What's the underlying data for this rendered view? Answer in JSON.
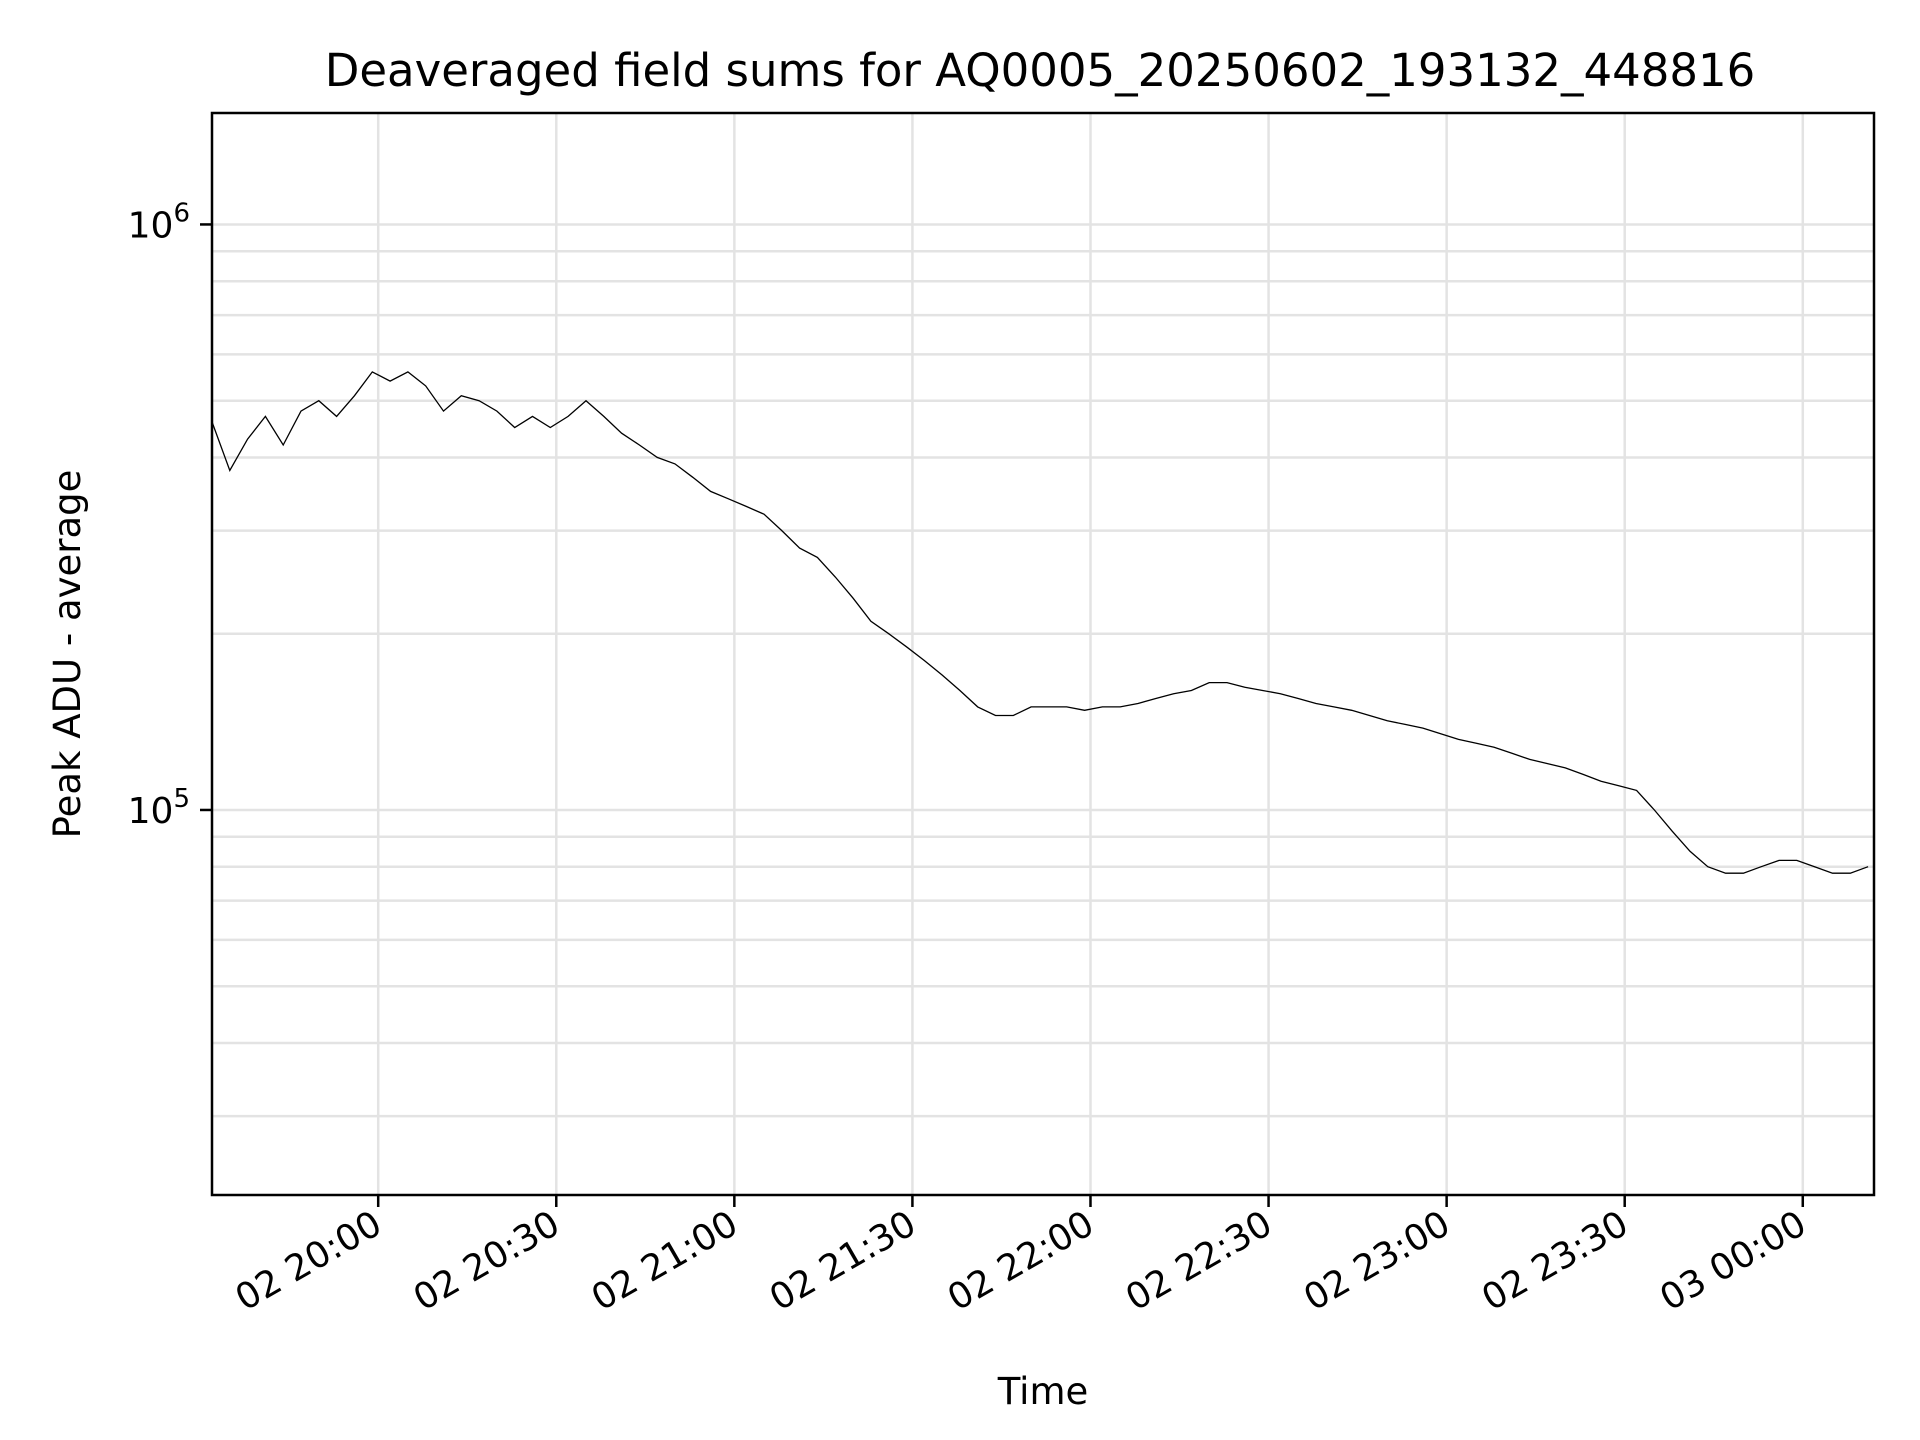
{
  "chart_data": {
    "type": "line",
    "title": "Deaveraged field sums for AQ0005_20250602_193132_448816",
    "xlabel": "Time",
    "ylabel": "Peak ADU - average",
    "yscale": "log",
    "ylim": [
      22000,
      1550000
    ],
    "xlim": [
      "2025-06-02 19:32:00",
      "2025-06-03 00:12:00"
    ],
    "grid": true,
    "xticks": [
      {
        "value": "2025-06-02 20:00:00",
        "label": "02 20:00"
      },
      {
        "value": "2025-06-02 20:30:00",
        "label": "02 20:30"
      },
      {
        "value": "2025-06-02 21:00:00",
        "label": "02 21:00"
      },
      {
        "value": "2025-06-02 21:30:00",
        "label": "02 21:30"
      },
      {
        "value": "2025-06-02 22:00:00",
        "label": "02 22:00"
      },
      {
        "value": "2025-06-02 22:30:00",
        "label": "02 22:30"
      },
      {
        "value": "2025-06-02 23:00:00",
        "label": "02 23:00"
      },
      {
        "value": "2025-06-02 23:30:00",
        "label": "02 23:30"
      },
      {
        "value": "2025-06-03 00:00:00",
        "label": "03 00:00"
      }
    ],
    "yticks": [
      {
        "value": 100000,
        "base": "10",
        "exp": "5"
      },
      {
        "value": 1000000,
        "base": "10",
        "exp": "6"
      }
    ],
    "series": [
      {
        "color": "#000000",
        "points": [
          [
            "2025-06-02 19:32:00",
            460000
          ],
          [
            "2025-06-02 19:35:00",
            380000
          ],
          [
            "2025-06-02 19:38:00",
            430000
          ],
          [
            "2025-06-02 19:41:00",
            470000
          ],
          [
            "2025-06-02 19:44:00",
            420000
          ],
          [
            "2025-06-02 19:47:00",
            480000
          ],
          [
            "2025-06-02 19:50:00",
            500000
          ],
          [
            "2025-06-02 19:53:00",
            470000
          ],
          [
            "2025-06-02 19:56:00",
            510000
          ],
          [
            "2025-06-02 19:59:00",
            560000
          ],
          [
            "2025-06-02 20:02:00",
            540000
          ],
          [
            "2025-06-02 20:05:00",
            560000
          ],
          [
            "2025-06-02 20:08:00",
            530000
          ],
          [
            "2025-06-02 20:11:00",
            480000
          ],
          [
            "2025-06-02 20:14:00",
            510000
          ],
          [
            "2025-06-02 20:17:00",
            500000
          ],
          [
            "2025-06-02 20:20:00",
            480000
          ],
          [
            "2025-06-02 20:23:00",
            450000
          ],
          [
            "2025-06-02 20:26:00",
            470000
          ],
          [
            "2025-06-02 20:29:00",
            450000
          ],
          [
            "2025-06-02 20:32:00",
            470000
          ],
          [
            "2025-06-02 20:35:00",
            500000
          ],
          [
            "2025-06-02 20:38:00",
            470000
          ],
          [
            "2025-06-02 20:41:00",
            440000
          ],
          [
            "2025-06-02 20:44:00",
            420000
          ],
          [
            "2025-06-02 20:47:00",
            400000
          ],
          [
            "2025-06-02 20:50:00",
            390000
          ],
          [
            "2025-06-02 20:53:00",
            370000
          ],
          [
            "2025-06-02 20:56:00",
            350000
          ],
          [
            "2025-06-02 20:59:00",
            340000
          ],
          [
            "2025-06-02 21:02:00",
            330000
          ],
          [
            "2025-06-02 21:05:00",
            320000
          ],
          [
            "2025-06-02 21:08:00",
            300000
          ],
          [
            "2025-06-02 21:11:00",
            280000
          ],
          [
            "2025-06-02 21:14:00",
            270000
          ],
          [
            "2025-06-02 21:17:00",
            250000
          ],
          [
            "2025-06-02 21:20:00",
            230000
          ],
          [
            "2025-06-02 21:23:00",
            210000
          ],
          [
            "2025-06-02 21:26:00",
            200000
          ],
          [
            "2025-06-02 21:29:00",
            190000
          ],
          [
            "2025-06-02 21:32:00",
            180000
          ],
          [
            "2025-06-02 21:35:00",
            170000
          ],
          [
            "2025-06-02 21:38:00",
            160000
          ],
          [
            "2025-06-02 21:41:00",
            150000
          ],
          [
            "2025-06-02 21:44:00",
            145000
          ],
          [
            "2025-06-02 21:47:00",
            145000
          ],
          [
            "2025-06-02 21:50:00",
            150000
          ],
          [
            "2025-06-02 21:53:00",
            150000
          ],
          [
            "2025-06-02 21:56:00",
            150000
          ],
          [
            "2025-06-02 21:59:00",
            148000
          ],
          [
            "2025-06-02 22:02:00",
            150000
          ],
          [
            "2025-06-02 22:05:00",
            150000
          ],
          [
            "2025-06-02 22:08:00",
            152000
          ],
          [
            "2025-06-02 22:11:00",
            155000
          ],
          [
            "2025-06-02 22:14:00",
            158000
          ],
          [
            "2025-06-02 22:17:00",
            160000
          ],
          [
            "2025-06-02 22:20:00",
            165000
          ],
          [
            "2025-06-02 22:23:00",
            165000
          ],
          [
            "2025-06-02 22:26:00",
            162000
          ],
          [
            "2025-06-02 22:29:00",
            160000
          ],
          [
            "2025-06-02 22:32:00",
            158000
          ],
          [
            "2025-06-02 22:35:00",
            155000
          ],
          [
            "2025-06-02 22:38:00",
            152000
          ],
          [
            "2025-06-02 22:41:00",
            150000
          ],
          [
            "2025-06-02 22:44:00",
            148000
          ],
          [
            "2025-06-02 22:47:00",
            145000
          ],
          [
            "2025-06-02 22:50:00",
            142000
          ],
          [
            "2025-06-02 22:53:00",
            140000
          ],
          [
            "2025-06-02 22:56:00",
            138000
          ],
          [
            "2025-06-02 22:59:00",
            135000
          ],
          [
            "2025-06-02 23:02:00",
            132000
          ],
          [
            "2025-06-02 23:05:00",
            130000
          ],
          [
            "2025-06-02 23:08:00",
            128000
          ],
          [
            "2025-06-02 23:11:00",
            125000
          ],
          [
            "2025-06-02 23:14:00",
            122000
          ],
          [
            "2025-06-02 23:17:00",
            120000
          ],
          [
            "2025-06-02 23:20:00",
            118000
          ],
          [
            "2025-06-02 23:23:00",
            115000
          ],
          [
            "2025-06-02 23:26:00",
            112000
          ],
          [
            "2025-06-02 23:29:00",
            110000
          ],
          [
            "2025-06-02 23:32:00",
            108000
          ],
          [
            "2025-06-02 23:35:00",
            100000
          ],
          [
            "2025-06-02 23:38:00",
            92000
          ],
          [
            "2025-06-02 23:41:00",
            85000
          ],
          [
            "2025-06-02 23:44:00",
            80000
          ],
          [
            "2025-06-02 23:47:00",
            78000
          ],
          [
            "2025-06-02 23:50:00",
            78000
          ],
          [
            "2025-06-02 23:53:00",
            80000
          ],
          [
            "2025-06-02 23:56:00",
            82000
          ],
          [
            "2025-06-02 23:59:00",
            82000
          ],
          [
            "2025-06-03 00:02:00",
            80000
          ],
          [
            "2025-06-03 00:05:00",
            78000
          ],
          [
            "2025-06-03 00:08:00",
            78000
          ],
          [
            "2025-06-03 00:11:00",
            80000
          ]
        ]
      }
    ]
  }
}
